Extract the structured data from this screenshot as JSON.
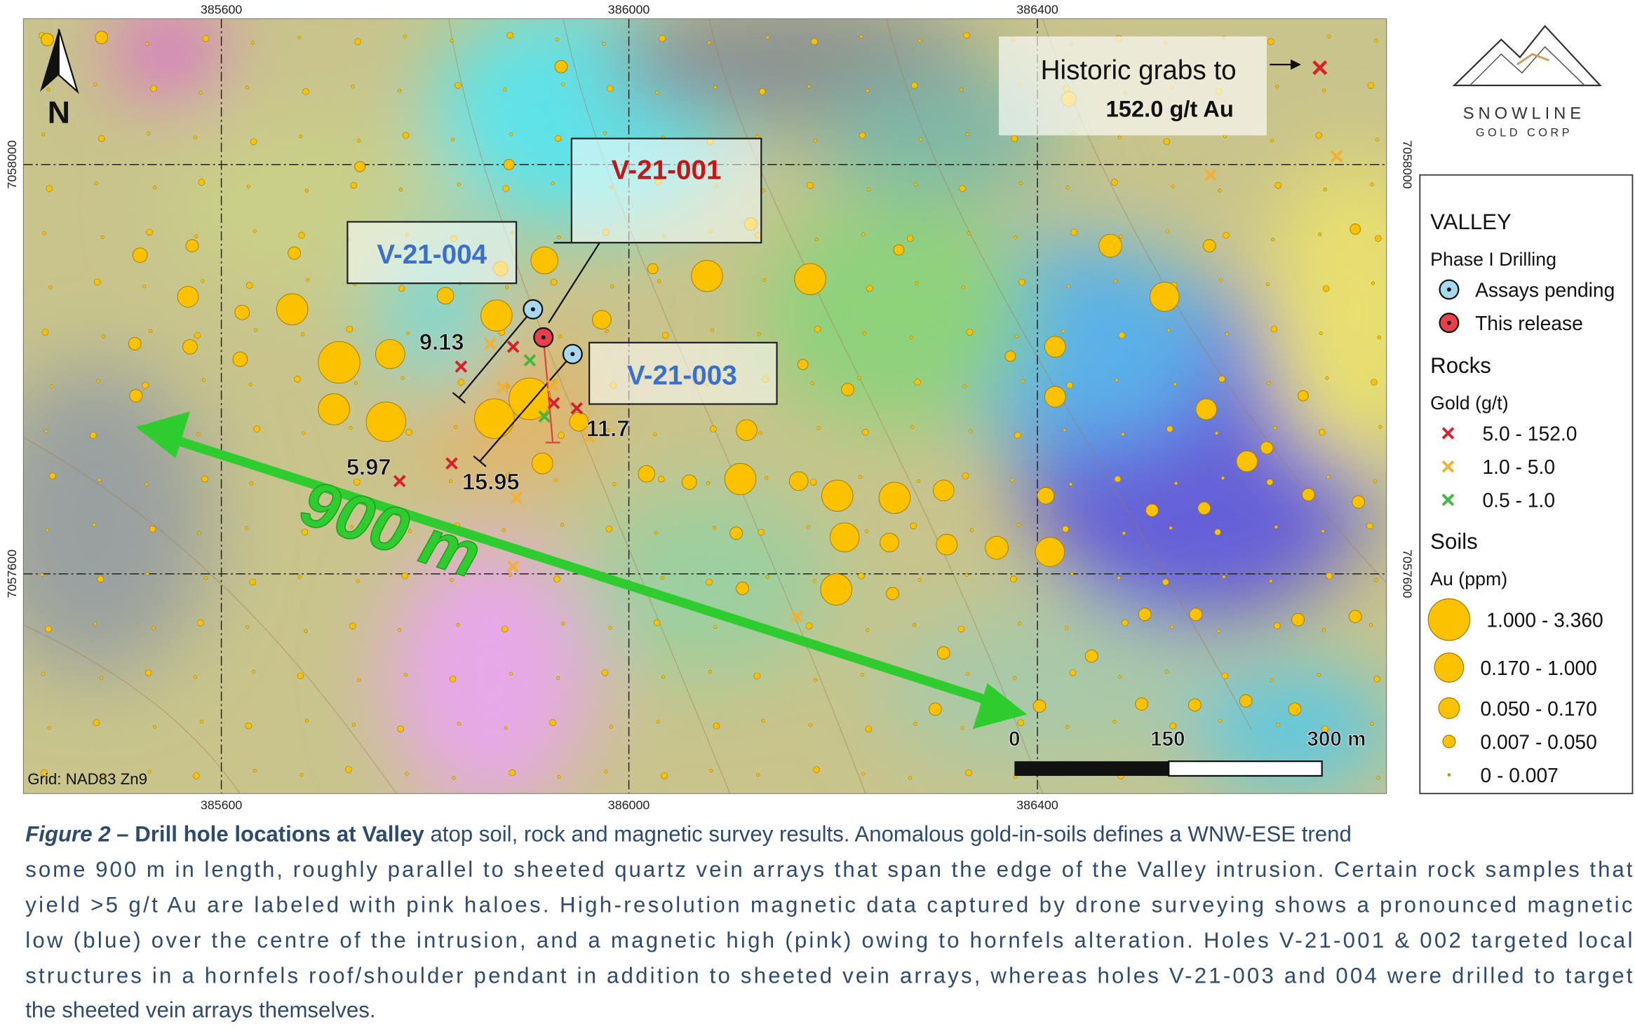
{
  "map": {
    "grid": {
      "eastings": [
        "385600",
        "386000",
        "386400"
      ],
      "northings": [
        "7058000",
        "7057600"
      ],
      "datum": "Grid: NAD83 Zn9"
    },
    "north": "N",
    "historic": {
      "line1": "Historic grabs to",
      "line2": "152.0 g/t Au"
    },
    "holes": [
      "V-21-001",
      "V-21-004",
      "V-21-003"
    ],
    "intercepts": [
      "9.13",
      "11.7",
      "5.97",
      "15.95"
    ],
    "trend": "900 m",
    "scale": [
      "0",
      "150",
      "300 m"
    ]
  },
  "logo": {
    "name": "SNOWLINE",
    "sub": "GOLD CORP"
  },
  "legend": {
    "title": "VALLEY",
    "drilling": {
      "heading": "Phase I Drilling",
      "items": [
        "Assays pending",
        "This release"
      ]
    },
    "rocks": {
      "heading": "Rocks",
      "unit": "Gold (g/t)",
      "items": [
        "5.0 - 152.0",
        "1.0 - 5.0",
        "0.5 - 1.0"
      ]
    },
    "soils": {
      "heading": "Soils",
      "unit": "Au (ppm)",
      "items": [
        "1.000 - 3.360",
        "0.170 - 1.000",
        "0.050 - 0.170",
        "0.007 - 0.050",
        "0 - 0.007"
      ]
    }
  },
  "caption": {
    "label": "Figure 2",
    "separator": "–",
    "heading": "Drill hole locations at Valley",
    "lines": [
      "atop soil, rock and magnetic survey results. Anomalous gold-in-soils defines a WNW-ESE trend",
      "some 900 m in length, roughly parallel to sheeted quartz vein arrays that span the edge of the Valley intrusion. Certain rock samples that",
      "yield >5 g/t Au are labeled with pink haloes. High-resolution magnetic data captured by drone surveying shows a pronounced magnetic",
      "low (blue) over the centre of the intrusion, and a magnetic high (pink) owing to hornfels alteration. Holes V-21-001 & 002 targeted local",
      "structures in a hornfels roof/shoulder pendant in addition to sheeted vein arrays, whereas holes V-21-003 and 004 were drilled to target",
      "the sheeted vein arrays themselves."
    ]
  }
}
